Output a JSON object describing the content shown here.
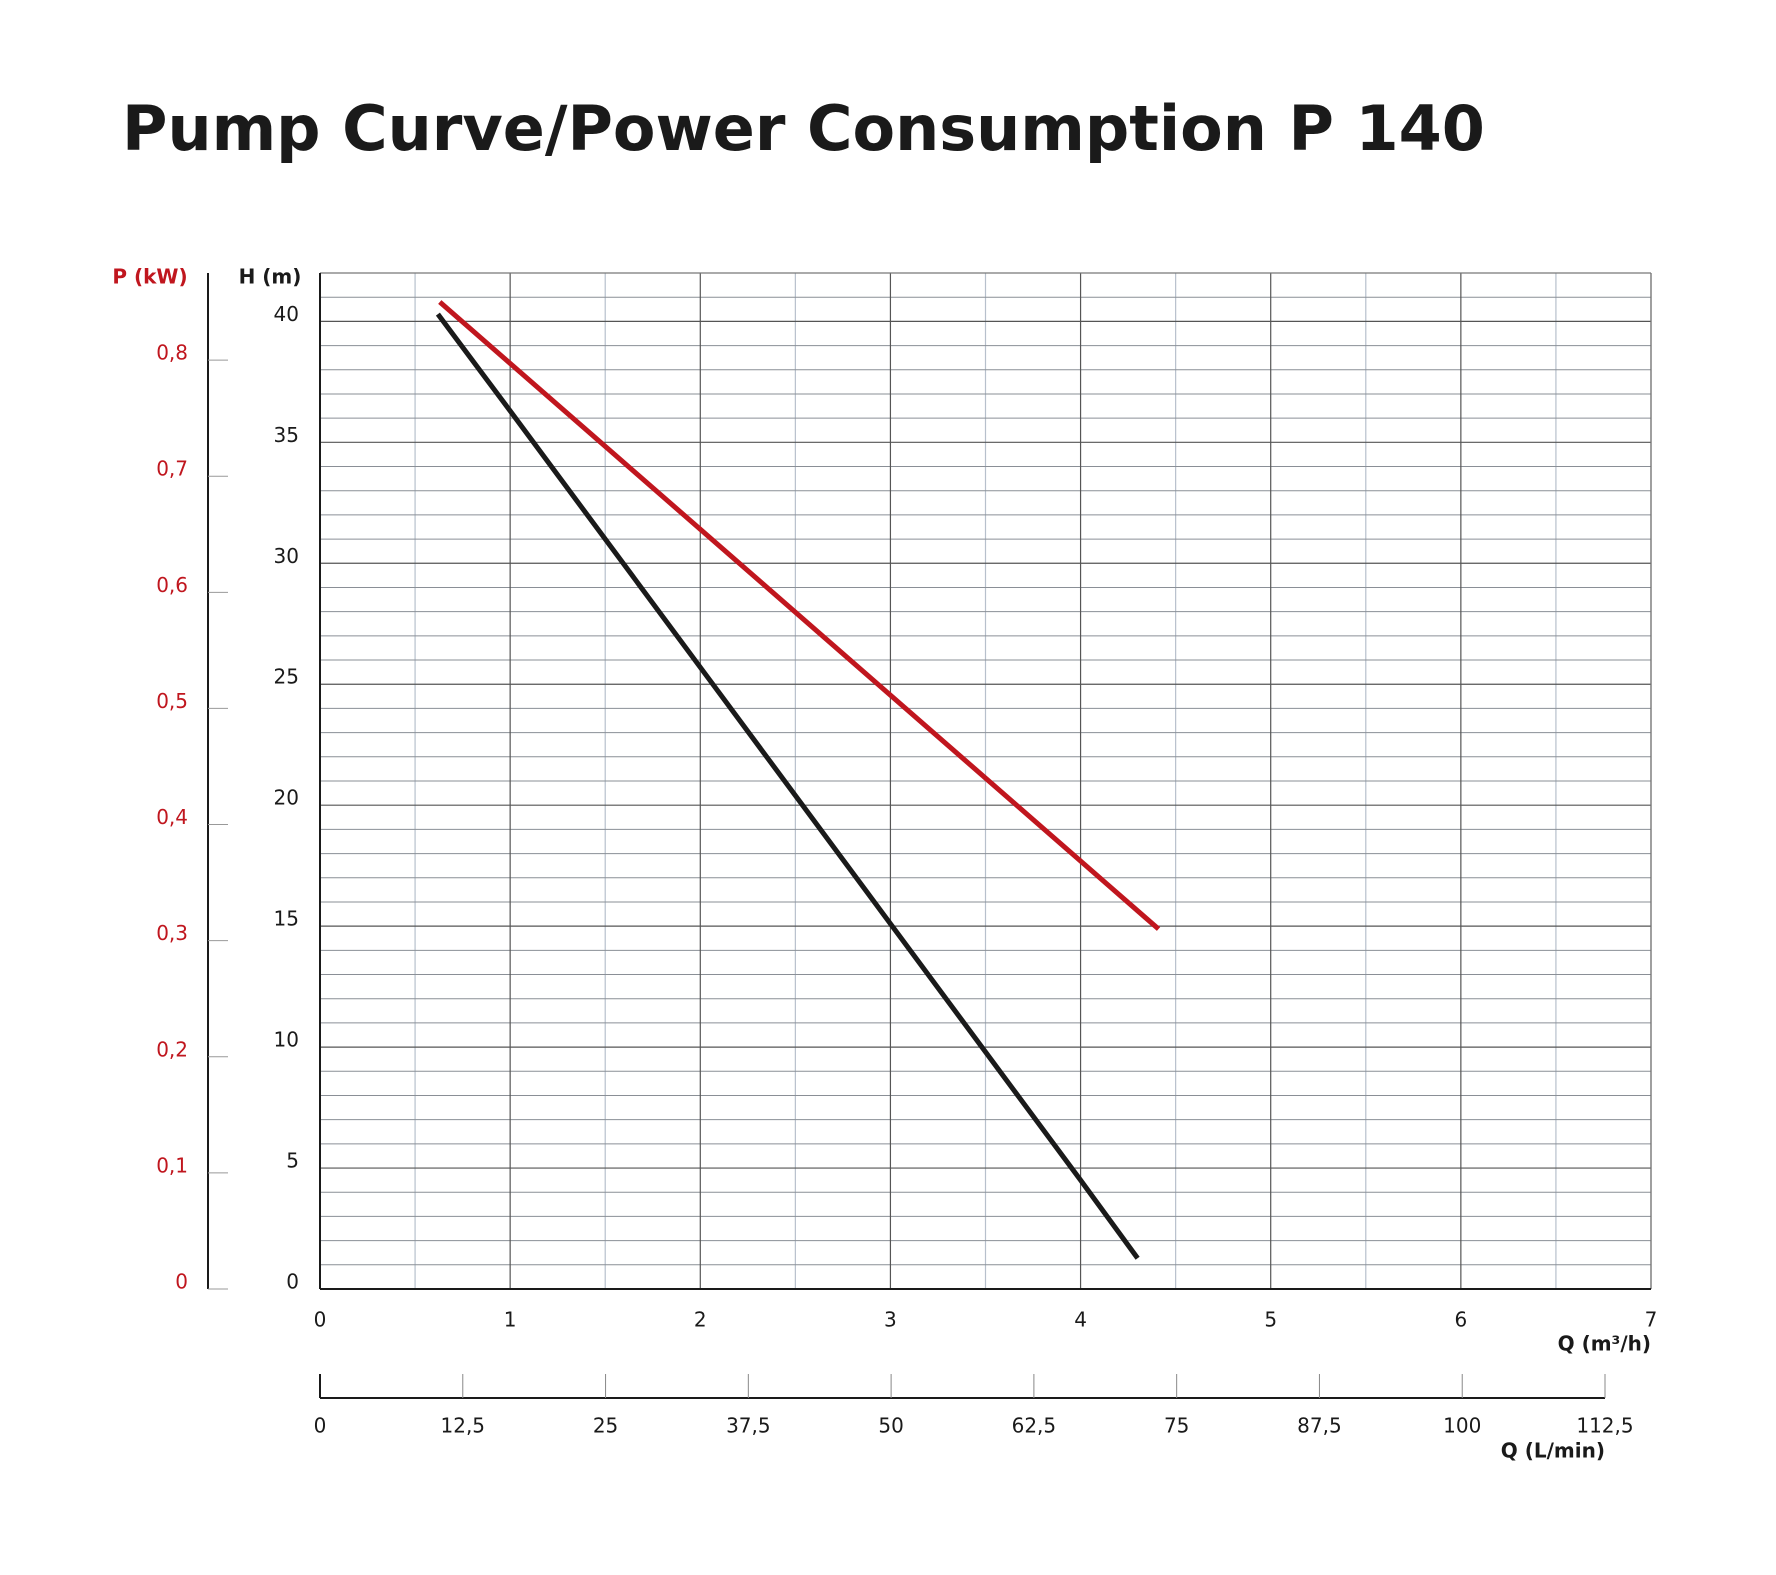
{
  "chart_data": {
    "type": "line",
    "title": "Pump Curve/Power Consumption P 140",
    "xlabel": "Q (m³/h)",
    "x2label": "Q (L/min)",
    "ylabel": "H (m)",
    "y2label": "P (kW)",
    "xlim": [
      0,
      7
    ],
    "xticks": [
      0,
      1,
      2,
      3,
      4,
      5,
      6,
      7
    ],
    "x2lim": [
      0,
      112.5
    ],
    "x2ticks": [
      0,
      {
        "value": 12.5,
        "label": "12,5"
      },
      25,
      {
        "value": 37.5,
        "label": "37,5"
      },
      50,
      {
        "value": 62.5,
        "label": "62,5"
      },
      75,
      {
        "value": 87.5,
        "label": "87,5"
      },
      100,
      {
        "value": 112.5,
        "label": "112,5"
      }
    ],
    "ylim": [
      0,
      42
    ],
    "yticks": [
      0,
      5,
      10,
      15,
      20,
      25,
      30,
      35,
      40
    ],
    "y2lim": [
      0,
      0.875
    ],
    "y2ticks": [
      0,
      {
        "value": 0.1,
        "label": "0,1"
      },
      {
        "value": 0.2,
        "label": "0,2"
      },
      {
        "value": 0.3,
        "label": "0,3"
      },
      {
        "value": 0.4,
        "label": "0,4"
      },
      {
        "value": 0.5,
        "label": "0,5"
      },
      {
        "value": 0.6,
        "label": "0,6"
      },
      {
        "value": 0.7,
        "label": "0,7"
      },
      {
        "value": 0.8,
        "label": "0,8"
      }
    ],
    "y2color": "#c0161e",
    "grid": true,
    "minor_grid": true,
    "series": [
      {
        "color": "#1a1a1a",
        "x": [
          0.62,
          1,
          2,
          3,
          4,
          4.3
        ],
        "values": [
          40.3,
          36.3,
          25.7,
          15.1,
          4.5,
          1.27
        ]
      },
      {
        "color": "#c0161e",
        "axis": "y2",
        "x": [
          0.63,
          4.41
        ],
        "values": [
          0.85,
          0.31
        ]
      }
    ]
  }
}
